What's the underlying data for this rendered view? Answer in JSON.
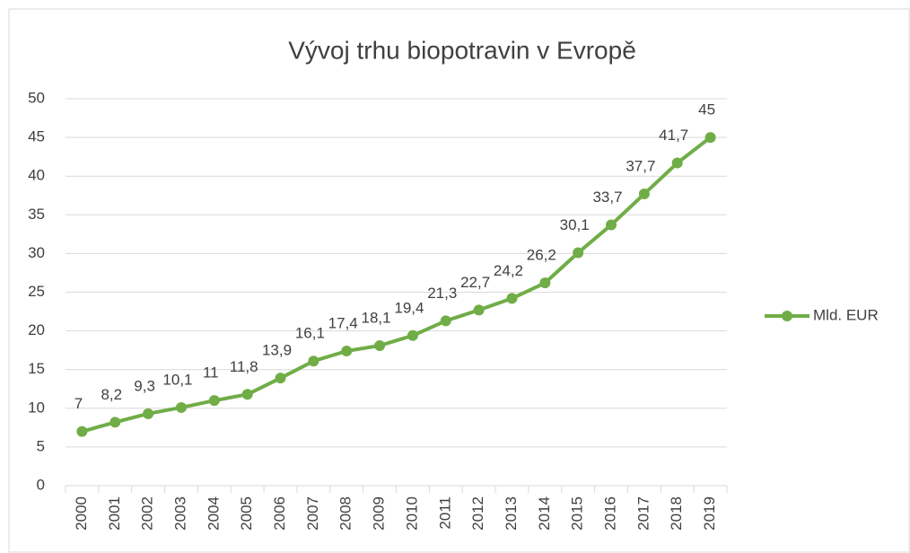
{
  "chart_data": {
    "type": "line",
    "title": "Vývoj trhu biopotravin v Evropě",
    "categories": [
      "2000",
      "2001",
      "2002",
      "2003",
      "2004",
      "2005",
      "2006",
      "2007",
      "2008",
      "2009",
      "2010",
      "2011",
      "2012",
      "2013",
      "2014",
      "2015",
      "2016",
      "2017",
      "2018",
      "2019"
    ],
    "series": [
      {
        "name": "Mld. EUR",
        "color": "#70ad47",
        "values": [
          7,
          8.2,
          9.3,
          10.1,
          11,
          11.8,
          13.9,
          16.1,
          17.4,
          18.1,
          19.4,
          21.3,
          22.7,
          24.2,
          26.2,
          30.1,
          33.7,
          37.7,
          41.7,
          45
        ],
        "value_labels": [
          "7",
          "8,2",
          "9,3",
          "10,1",
          "11",
          "11,8",
          "13,9",
          "16,1",
          "17,4",
          "18,1",
          "19,4",
          "21,3",
          "22,7",
          "24,2",
          "26,2",
          "30,1",
          "33,7",
          "37,7",
          "41,7",
          "45"
        ]
      }
    ],
    "ylim": [
      0,
      50
    ],
    "yticks": [
      0,
      5,
      10,
      15,
      20,
      25,
      30,
      35,
      40,
      45,
      50
    ],
    "grid": true,
    "legend": "right"
  }
}
